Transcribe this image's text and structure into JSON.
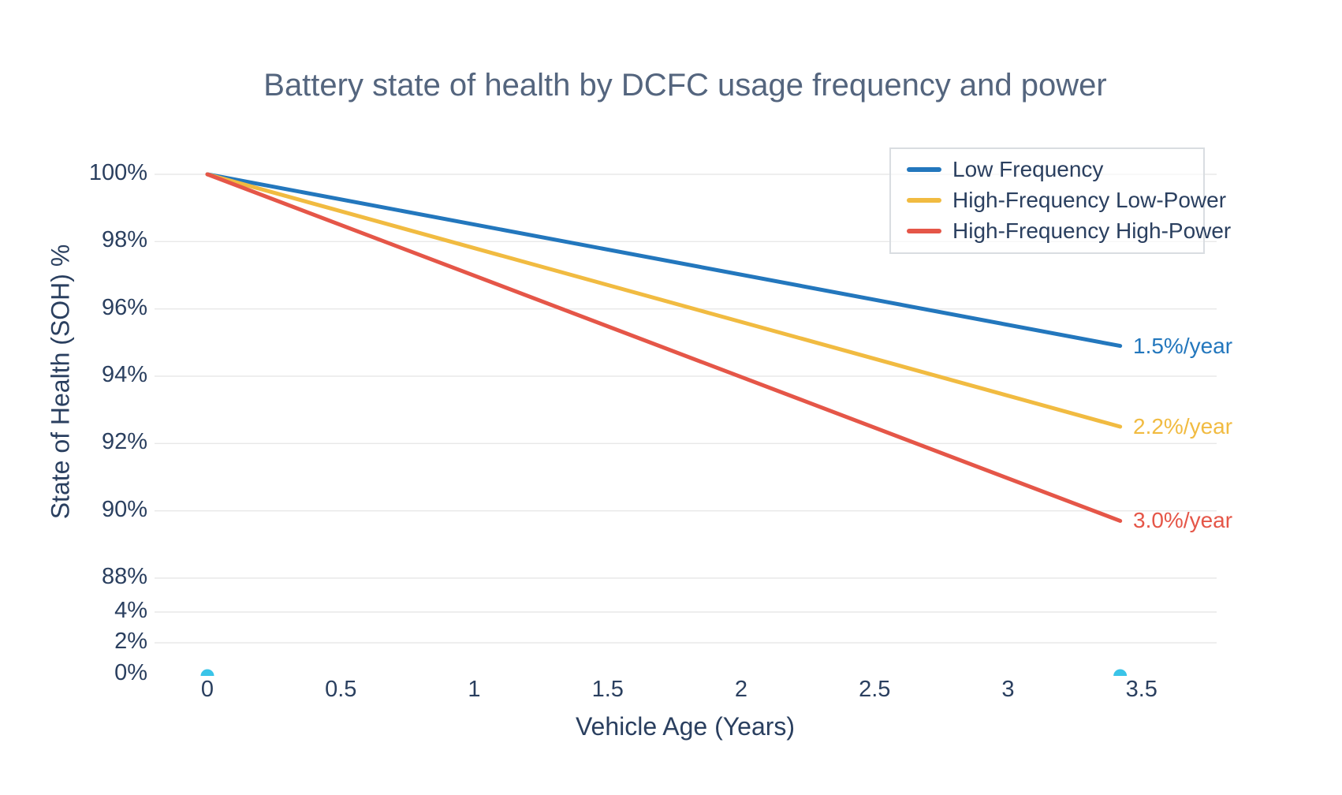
{
  "page": {
    "background": "#ffffff"
  },
  "chart_data": {
    "type": "line",
    "title": "Battery state of health by DCFC usage frequency and power",
    "xlabel": "Vehicle Age (Years)",
    "ylabel": "State of Health (SOH) %",
    "grid": true,
    "legend_position": "top-right",
    "x_range_years": [
      0,
      3.42
    ],
    "y_axis_note": "axis compressed between 4% and 88%",
    "x_ticks": [
      {
        "value": 0,
        "label": "0"
      },
      {
        "value": 0.5,
        "label": "0.5"
      },
      {
        "value": 1,
        "label": "1"
      },
      {
        "value": 1.5,
        "label": "1.5"
      },
      {
        "value": 2,
        "label": "2"
      },
      {
        "value": 2.5,
        "label": "2.5"
      },
      {
        "value": 3,
        "label": "3"
      },
      {
        "value": 3.5,
        "label": "3.5"
      }
    ],
    "y_ticks": [
      {
        "value": 0,
        "label": "0%"
      },
      {
        "value": 2,
        "label": "2%"
      },
      {
        "value": 4,
        "label": "4%"
      },
      {
        "value": 88,
        "label": "88%"
      },
      {
        "value": 90,
        "label": "90%"
      },
      {
        "value": 92,
        "label": "92%"
      },
      {
        "value": 94,
        "label": "94%"
      },
      {
        "value": 96,
        "label": "96%"
      },
      {
        "value": 98,
        "label": "98%"
      },
      {
        "value": 100,
        "label": "100%"
      }
    ],
    "series": [
      {
        "name": "Low Frequency",
        "color": "#2377bd",
        "degradation_rate_pct_per_year": 1.5,
        "annotation": "1.5%/year",
        "x": [
          0,
          3.42
        ],
        "y": [
          100,
          94.9
        ]
      },
      {
        "name": "High-Frequency Low-Power",
        "color": "#f1bb41",
        "degradation_rate_pct_per_year": 2.2,
        "annotation": "2.2%/year",
        "x": [
          0,
          3.42
        ],
        "y": [
          100,
          92.5
        ]
      },
      {
        "name": "High-Frequency High-Power",
        "color": "#e55648",
        "degradation_rate_pct_per_year": 3.0,
        "annotation": "3.0%/year",
        "x": [
          0,
          3.42
        ],
        "y": [
          100,
          89.7
        ]
      }
    ],
    "markers": {
      "color": "#3ac4e8",
      "points": [
        {
          "x": 0,
          "y": 0
        },
        {
          "x": 3.42,
          "y": 0
        }
      ]
    },
    "style": {
      "grid_color": "#e8e8e8",
      "text_color": "#2a3f5f",
      "title_color": "#54657e"
    }
  }
}
